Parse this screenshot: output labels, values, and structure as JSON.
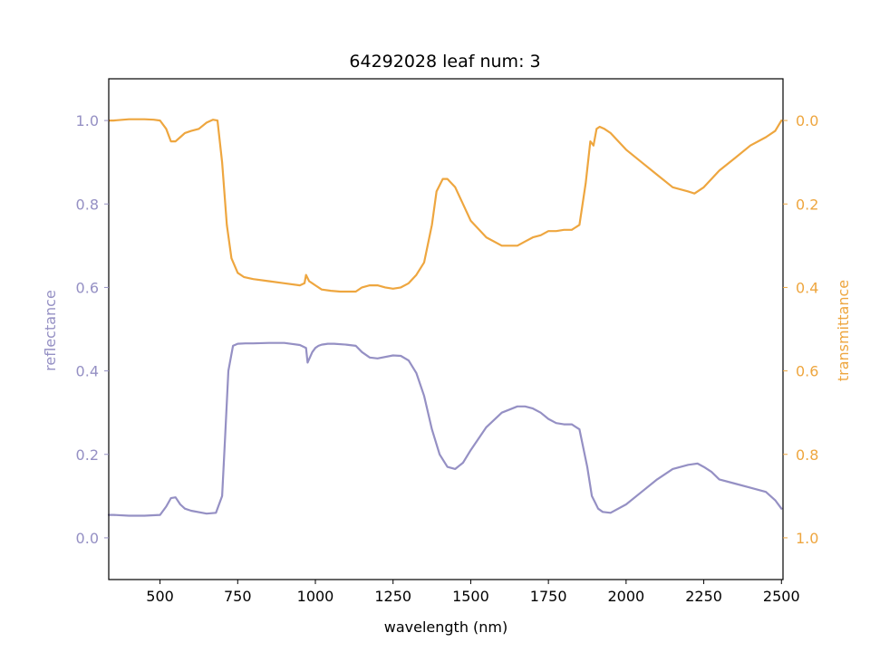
{
  "chart_data": {
    "type": "line",
    "title": "64292028 leaf num: 3",
    "xlabel": "wavelength (nm)",
    "ylabel_left": "reflectance",
    "ylabel_right": "transmittance",
    "xlim": [
      335,
      2505
    ],
    "ylim_left": [
      -0.1,
      1.1
    ],
    "ylim_right": [
      1.1,
      -0.1
    ],
    "right_axis_inverted": true,
    "x_ticks": [
      500,
      750,
      1000,
      1250,
      1500,
      1750,
      2000,
      2250,
      2500
    ],
    "x_tick_labels": [
      "500",
      "750",
      "1000",
      "1250",
      "1500",
      "1750",
      "2000",
      "2250",
      "2500"
    ],
    "y_left_ticks": [
      0.0,
      0.2,
      0.4,
      0.6,
      0.8,
      1.0
    ],
    "y_left_tick_labels": [
      "0.0",
      "0.2",
      "0.4",
      "0.6",
      "0.8",
      "1.0"
    ],
    "y_right_ticks": [
      0.0,
      0.2,
      0.4,
      0.6,
      0.8,
      1.0
    ],
    "y_right_tick_labels": [
      "0.0",
      "0.2",
      "0.4",
      "0.6",
      "0.8",
      "1.0"
    ],
    "grid": false,
    "colors": {
      "reflectance": "#9590c4",
      "transmittance": "#eea63f",
      "left_axis_text": "#9590c4",
      "right_axis_text": "#eea63f"
    },
    "series": [
      {
        "axis": "left",
        "color": "#9590c4",
        "x": [
          335,
          350,
          400,
          450,
          500,
          520,
          535,
          550,
          565,
          580,
          600,
          650,
          680,
          700,
          710,
          720,
          735,
          750,
          775,
          800,
          850,
          900,
          950,
          970,
          975,
          990,
          1000,
          1010,
          1020,
          1040,
          1060,
          1100,
          1130,
          1150,
          1175,
          1200,
          1250,
          1275,
          1300,
          1325,
          1350,
          1375,
          1400,
          1425,
          1450,
          1475,
          1500,
          1550,
          1600,
          1650,
          1675,
          1700,
          1725,
          1750,
          1775,
          1800,
          1825,
          1850,
          1875,
          1890,
          1900,
          1910,
          1925,
          1950,
          2000,
          2050,
          2100,
          2150,
          2200,
          2230,
          2250,
          2275,
          2300,
          2350,
          2400,
          2450,
          2480,
          2500
        ],
        "y": [
          0.055,
          0.055,
          0.053,
          0.053,
          0.055,
          0.075,
          0.095,
          0.097,
          0.08,
          0.07,
          0.065,
          0.058,
          0.06,
          0.1,
          0.25,
          0.4,
          0.46,
          0.465,
          0.466,
          0.466,
          0.467,
          0.467,
          0.462,
          0.455,
          0.42,
          0.445,
          0.455,
          0.46,
          0.463,
          0.465,
          0.465,
          0.463,
          0.46,
          0.445,
          0.432,
          0.43,
          0.437,
          0.436,
          0.425,
          0.395,
          0.34,
          0.26,
          0.2,
          0.17,
          0.165,
          0.18,
          0.21,
          0.265,
          0.3,
          0.315,
          0.315,
          0.31,
          0.3,
          0.285,
          0.275,
          0.272,
          0.272,
          0.26,
          0.17,
          0.1,
          0.085,
          0.07,
          0.062,
          0.06,
          0.08,
          0.11,
          0.14,
          0.165,
          0.175,
          0.178,
          0.17,
          0.158,
          0.14,
          0.13,
          0.12,
          0.11,
          0.09,
          0.07
        ]
      },
      {
        "axis": "right",
        "color": "#eea63f",
        "x": [
          335,
          350,
          400,
          450,
          480,
          500,
          520,
          535,
          550,
          565,
          580,
          600,
          625,
          650,
          670,
          685,
          700,
          715,
          730,
          750,
          770,
          800,
          850,
          900,
          950,
          965,
          970,
          980,
          990,
          1000,
          1020,
          1050,
          1080,
          1100,
          1130,
          1150,
          1175,
          1200,
          1225,
          1250,
          1275,
          1300,
          1325,
          1350,
          1375,
          1390,
          1410,
          1425,
          1450,
          1475,
          1500,
          1550,
          1600,
          1650,
          1675,
          1700,
          1725,
          1750,
          1775,
          1800,
          1825,
          1850,
          1870,
          1885,
          1895,
          1905,
          1915,
          1930,
          1950,
          2000,
          2050,
          2100,
          2150,
          2200,
          2220,
          2250,
          2300,
          2350,
          2400,
          2450,
          2480,
          2500
        ],
        "y": [
          0.0,
          0.0,
          -0.003,
          -0.003,
          -0.002,
          0.0,
          0.02,
          0.05,
          0.05,
          0.04,
          0.03,
          0.025,
          0.02,
          0.005,
          -0.002,
          0.0,
          0.1,
          0.25,
          0.33,
          0.365,
          0.375,
          0.38,
          0.385,
          0.39,
          0.395,
          0.39,
          0.37,
          0.385,
          0.39,
          0.395,
          0.405,
          0.408,
          0.41,
          0.41,
          0.41,
          0.4,
          0.395,
          0.395,
          0.4,
          0.403,
          0.4,
          0.39,
          0.37,
          0.34,
          0.25,
          0.17,
          0.14,
          0.14,
          0.16,
          0.2,
          0.24,
          0.28,
          0.3,
          0.3,
          0.29,
          0.28,
          0.275,
          0.265,
          0.265,
          0.262,
          0.262,
          0.25,
          0.15,
          0.05,
          0.06,
          0.02,
          0.015,
          0.02,
          0.03,
          0.07,
          0.1,
          0.13,
          0.16,
          0.17,
          0.175,
          0.16,
          0.12,
          0.09,
          0.06,
          0.04,
          0.025,
          0.0
        ]
      }
    ]
  }
}
